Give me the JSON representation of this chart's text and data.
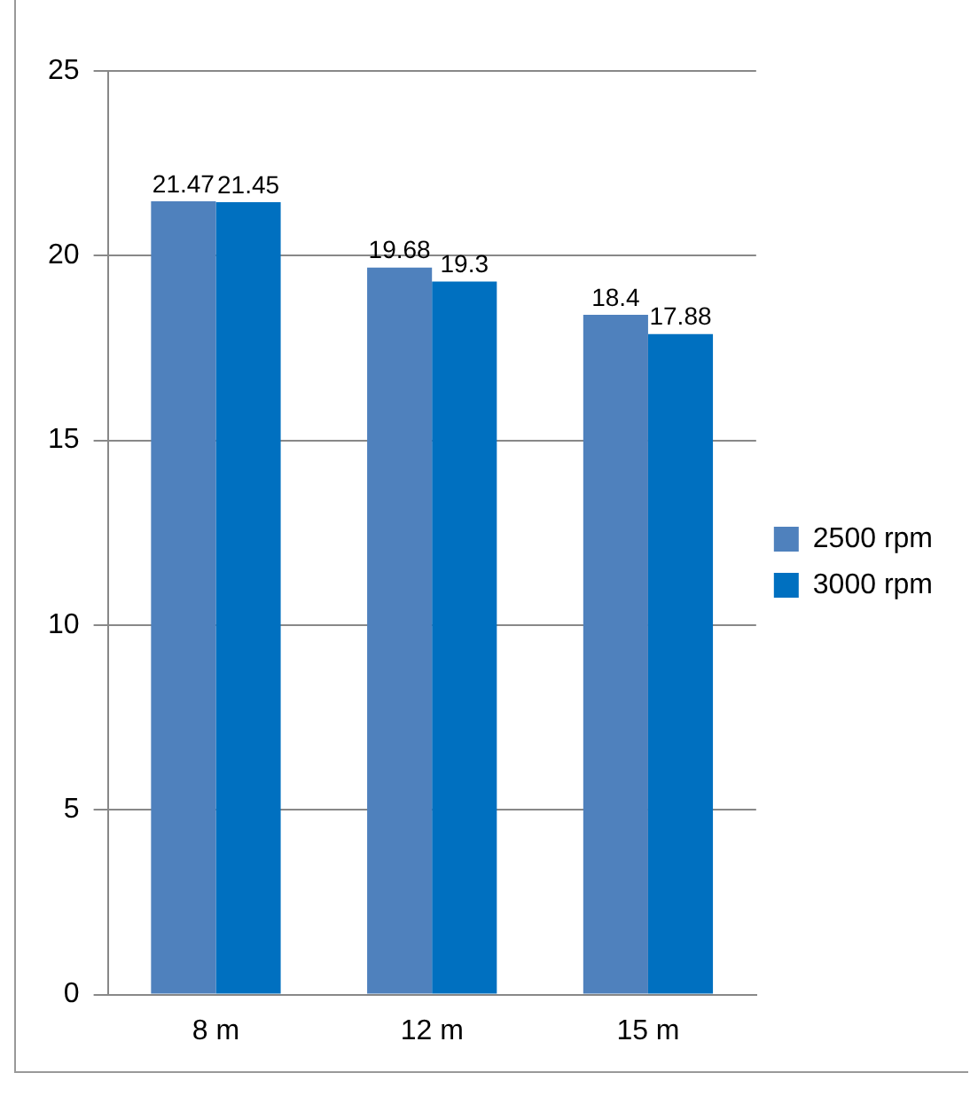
{
  "chart_data": {
    "type": "bar",
    "categories": [
      "8 m",
      "12 m",
      "15 m"
    ],
    "series": [
      {
        "name": "2500 rpm",
        "color": "#4f81bd",
        "values": [
          21.47,
          19.68,
          18.4
        ]
      },
      {
        "name": "3000 rpm",
        "color": "#0070c0",
        "values": [
          21.45,
          19.3,
          17.88
        ]
      }
    ],
    "ylim": [
      0,
      25
    ],
    "yticks": [
      0,
      5,
      10,
      15,
      20,
      25
    ],
    "grid": "y",
    "legend": "right",
    "data_labels": true
  }
}
